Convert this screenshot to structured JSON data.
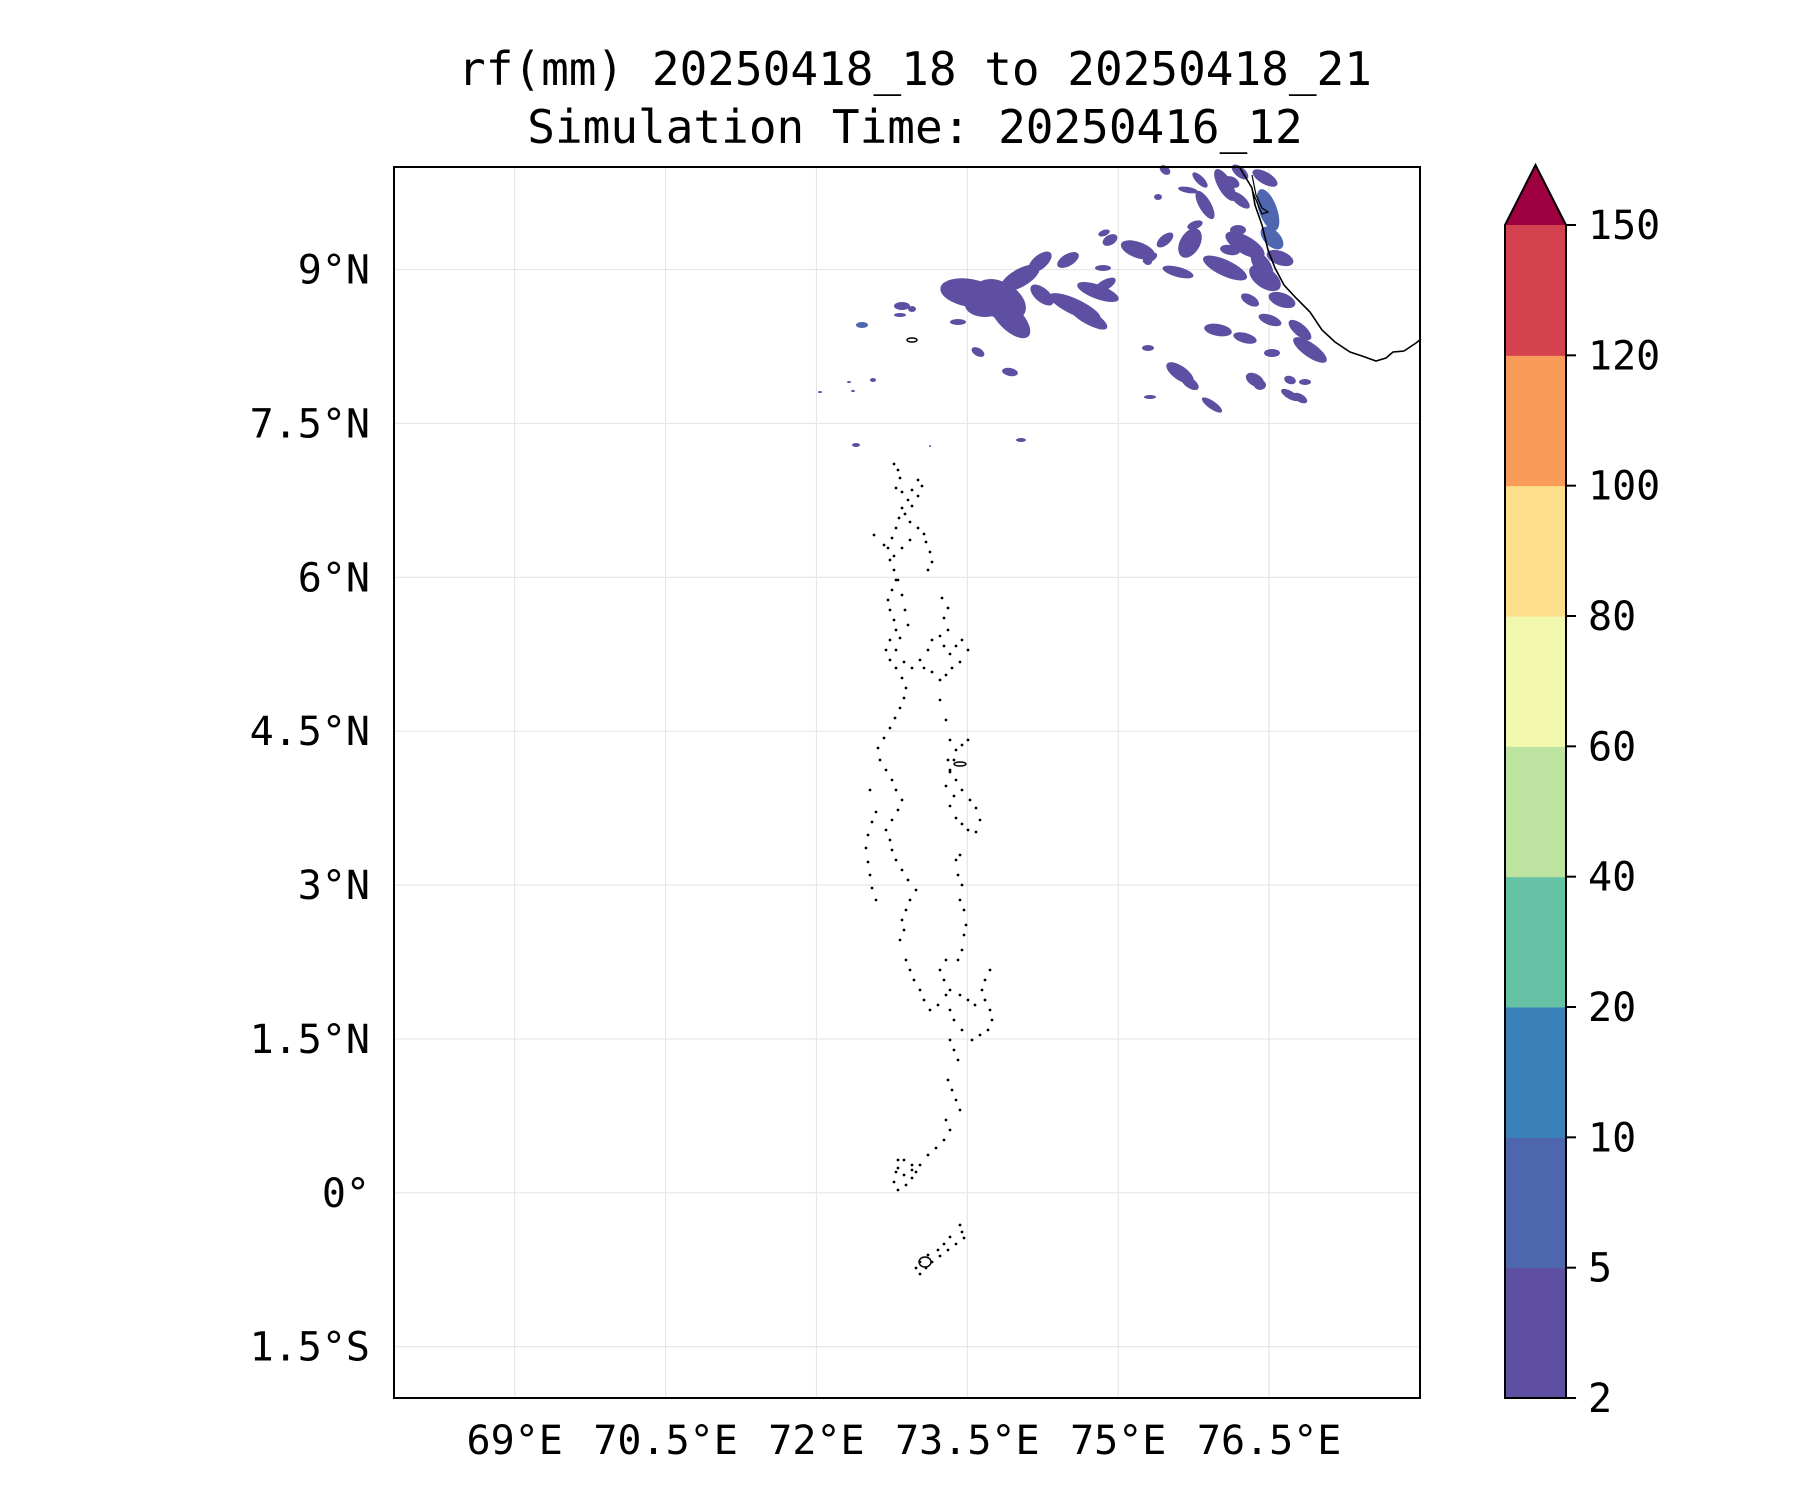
{
  "title": {
    "line1": "rf(mm) 20250418_18 to 20250418_21",
    "line2": "Simulation Time: 20250416_12"
  },
  "map": {
    "lon_range": [
      67.8,
      78.0
    ],
    "lat_range": [
      -2.0,
      10.0
    ],
    "lon_ticks": [
      69,
      70.5,
      72,
      73.5,
      75,
      76.5
    ],
    "lon_tick_labels": [
      "69°E",
      "70.5°E",
      "72°E",
      "73.5°E",
      "75°E",
      "76.5°E"
    ],
    "lat_ticks": [
      -1.5,
      0,
      1.5,
      3,
      4.5,
      6,
      7.5,
      9
    ],
    "lat_tick_labels": [
      "1.5°S",
      "0°",
      "1.5°N",
      "3°N",
      "4.5°N",
      "6°N",
      "7.5°N",
      "9°N"
    ],
    "grid": true,
    "coastline_color": "#000000",
    "rain_patch_color": "#5e4fa2",
    "rain_patch_color_alt": "#4f66b0"
  },
  "colorbar": {
    "levels": [
      2,
      5,
      10,
      20,
      40,
      60,
      80,
      100,
      120,
      150
    ],
    "level_labels": [
      "2",
      "5",
      "10",
      "20",
      "40",
      "60",
      "80",
      "100",
      "120",
      "150"
    ],
    "colors": [
      "#5e4fa2",
      "#4e66ae",
      "#3a80b9",
      "#66c2a5",
      "#bde3a1",
      "#f2f8ae",
      "#fddf8b",
      "#f99c59",
      "#d3424e"
    ],
    "extend_color": "#9e0142",
    "extend": "max"
  }
}
